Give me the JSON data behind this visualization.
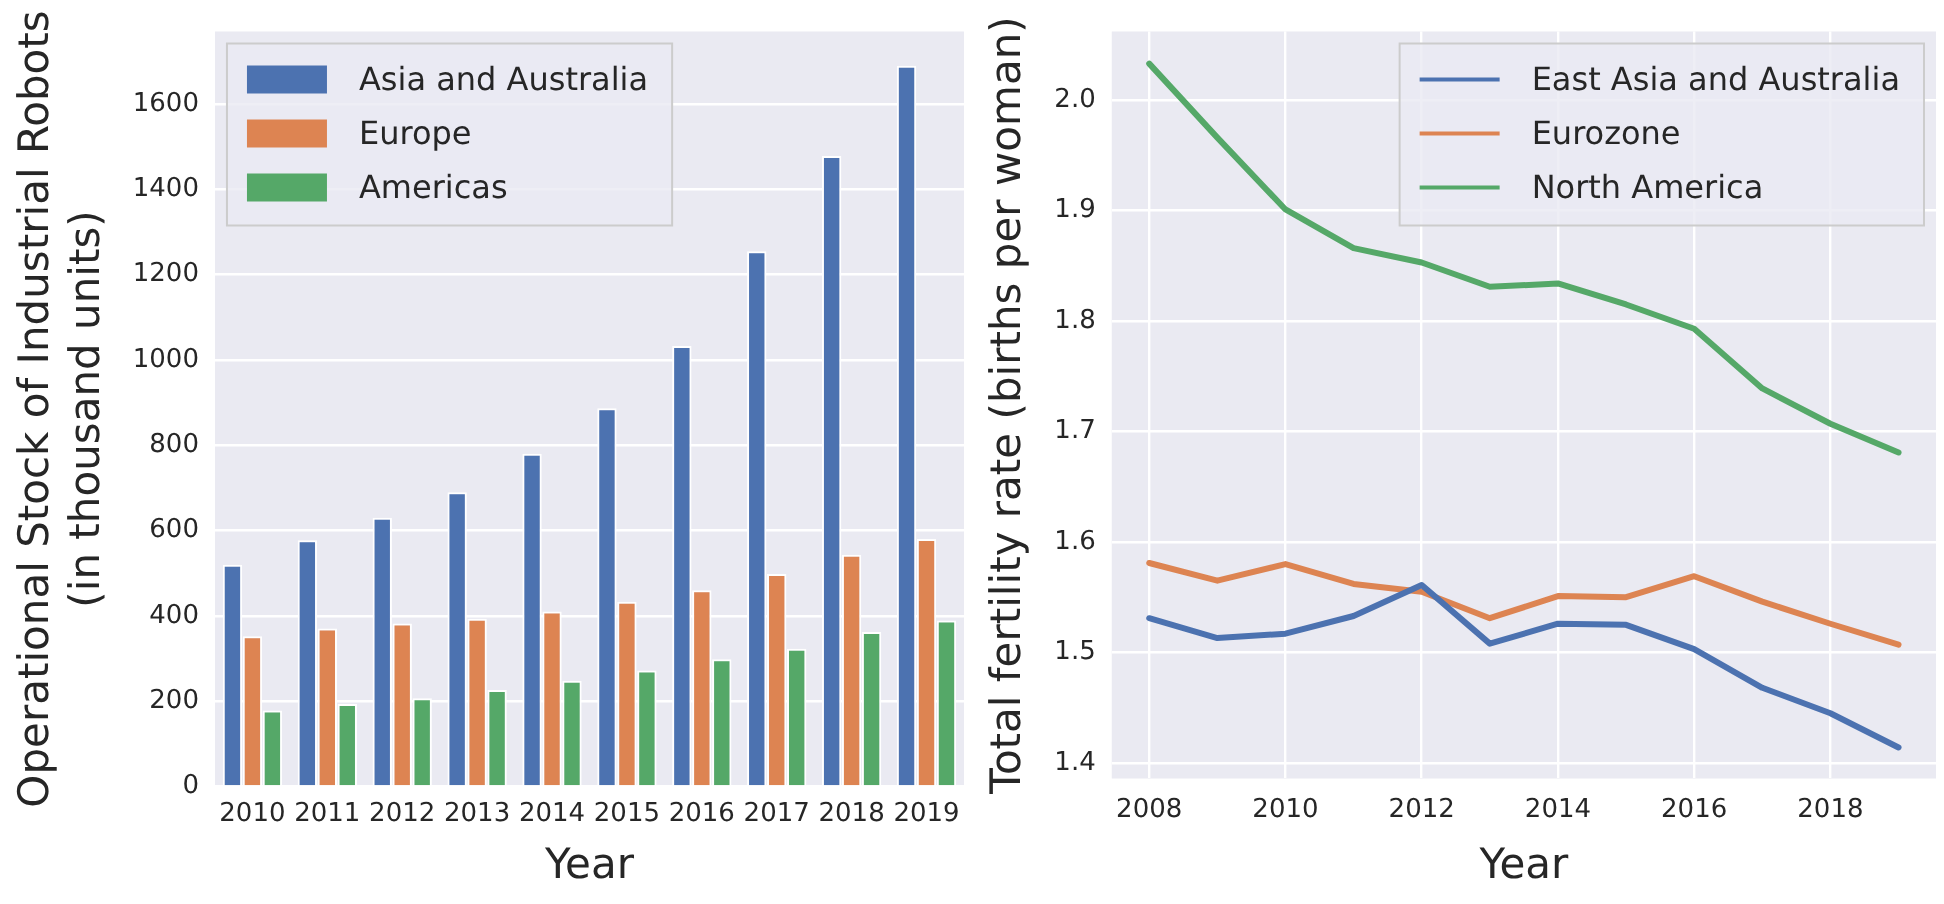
{
  "chart_data": [
    {
      "type": "bar",
      "xlabel": "Year",
      "ylabel": "Operational Stock of Industrial Robots\n(in thousand units)",
      "categories": [
        "2010",
        "2011",
        "2012",
        "2013",
        "2014",
        "2015",
        "2016",
        "2017",
        "2018",
        "2019"
      ],
      "series": [
        {
          "name": "Asia and Australia",
          "color": "#4c72b0",
          "values": [
            520,
            577,
            630,
            690,
            780,
            887,
            1033,
            1255,
            1478,
            1690
          ]
        },
        {
          "name": "Europe",
          "color": "#dd8452",
          "values": [
            352,
            370,
            382,
            393,
            410,
            433,
            460,
            498,
            543,
            580
          ]
        },
        {
          "name": "Americas",
          "color": "#55a868",
          "values": [
            178,
            193,
            207,
            226,
            248,
            272,
            298,
            323,
            362,
            389
          ]
        }
      ],
      "ylim": [
        0,
        1770
      ],
      "yticks": [
        0,
        200,
        400,
        600,
        800,
        1000,
        1200,
        1400,
        1600
      ],
      "grid": "y",
      "legend": "top left"
    },
    {
      "type": "line",
      "xlabel": "Year",
      "ylabel": "Total fertility rate (births per woman)",
      "x": [
        2008,
        2009,
        2010,
        2011,
        2012,
        2013,
        2014,
        2015,
        2016,
        2017,
        2018,
        2019
      ],
      "series": [
        {
          "name": "East Asia and Australia",
          "color": "#4c72b0",
          "values": [
            1.531,
            1.513,
            1.517,
            1.533,
            1.561,
            1.508,
            1.526,
            1.525,
            1.503,
            1.468,
            1.445,
            1.414
          ]
        },
        {
          "name": "Eurozone",
          "color": "#dd8452",
          "values": [
            1.581,
            1.565,
            1.58,
            1.562,
            1.555,
            1.531,
            1.551,
            1.55,
            1.569,
            1.546,
            1.526,
            1.507
          ]
        },
        {
          "name": "North America",
          "color": "#55a868",
          "values": [
            2.033,
            1.966,
            1.901,
            1.866,
            1.853,
            1.831,
            1.834,
            1.815,
            1.793,
            1.739,
            1.707,
            1.681
          ]
        }
      ],
      "xlim": [
        2007.45,
        2019.55
      ],
      "xticks": [
        2008,
        2010,
        2012,
        2014,
        2016,
        2018
      ],
      "ylim": [
        1.386,
        2.062
      ],
      "yticks": [
        1.4,
        1.5,
        1.6,
        1.7,
        1.8,
        1.9,
        {
          "value": 2.0,
          "label": "2.0"
        }
      ],
      "grid": true,
      "legend": "top right"
    }
  ]
}
